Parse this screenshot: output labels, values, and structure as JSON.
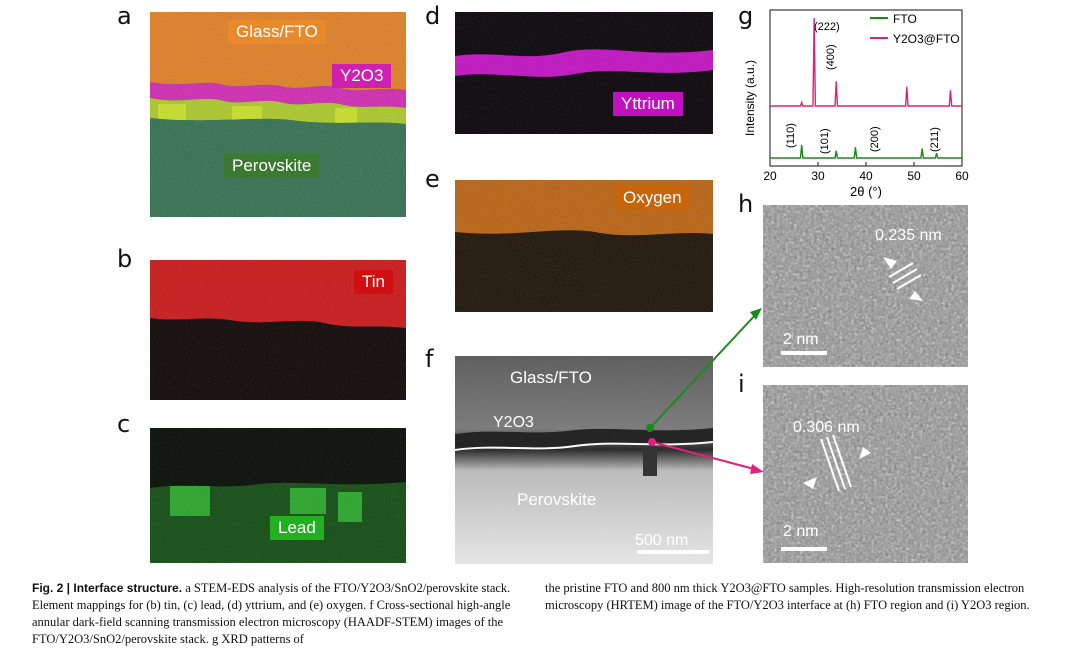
{
  "panels": {
    "a": {
      "label": "a",
      "glass": "Glass/FTO",
      "y2o3": "Y2O3",
      "perovskite": "Perovskite"
    },
    "b": {
      "label": "b",
      "tag": "Tin"
    },
    "c": {
      "label": "c",
      "tag": "Lead"
    },
    "d": {
      "label": "d",
      "tag": "Yttrium"
    },
    "e": {
      "label": "e",
      "tag": "Oxygen"
    },
    "f": {
      "label": "f",
      "glass": "Glass/FTO",
      "y2o3": "Y2O3",
      "perovskite": "Perovskite",
      "scale": "500 nm"
    },
    "g": {
      "label": "g"
    },
    "h": {
      "label": "h",
      "spacing": "0.235 nm",
      "scale": "2 nm"
    },
    "i": {
      "label": "i",
      "spacing": "0.306 nm",
      "scale": "2 nm"
    }
  },
  "colors": {
    "tin": "#d01010",
    "lead": "#22b020",
    "yttrium": "#c010c0",
    "oxygen": "#c8640a",
    "perovskite_tag": "#3a7a30",
    "glass_tag": "#e88a2a"
  },
  "chart_data": {
    "type": "line",
    "xlabel": "2θ (°)",
    "ylabel": "Intensity (a.u.)",
    "xlim": [
      20,
      60
    ],
    "xticks": [
      20,
      30,
      40,
      50,
      60
    ],
    "legend_position": "top-right",
    "series": [
      {
        "name": "FTO",
        "color": "#1a8a1a",
        "peaks": [
          {
            "x": 26.6,
            "h": 0.22
          },
          {
            "x": 33.8,
            "h": 0.12
          },
          {
            "x": 37.8,
            "h": 0.18
          },
          {
            "x": 51.7,
            "h": 0.16
          },
          {
            "x": 54.7,
            "h": 0.08
          }
        ]
      },
      {
        "name": "Y2O3@FTO",
        "color": "#e0207a",
        "peaks": [
          {
            "x": 26.6,
            "h": 0.04
          },
          {
            "x": 29.2,
            "h": 1.0
          },
          {
            "x": 33.8,
            "h": 0.28
          },
          {
            "x": 48.5,
            "h": 0.22
          },
          {
            "x": 57.6,
            "h": 0.18
          }
        ]
      }
    ],
    "annotations": [
      "(222)",
      "(400)",
      "(110)",
      "(101)",
      "(200)",
      "(211)"
    ]
  },
  "caption": {
    "fig": "Fig. 2 | Interface structure.",
    "col1": "a STEM-EDS analysis of the FTO/Y2O3/SnO2/perovskite stack. Element mappings for (b) tin, (c) lead, (d) yttrium, and (e) oxygen. f Cross-sectional high-angle annular dark-field scanning transmission electron microscopy (HAADF-STEM) images of the FTO/Y2O3/SnO2/perovskite stack. g XRD patterns of",
    "col2": "the pristine FTO and 800 nm thick Y2O3@FTO samples. High-resolution transmission electron microscopy (HRTEM) image of the FTO/Y2O3 interface at (h) FTO region and (i) Y2O3 region."
  }
}
